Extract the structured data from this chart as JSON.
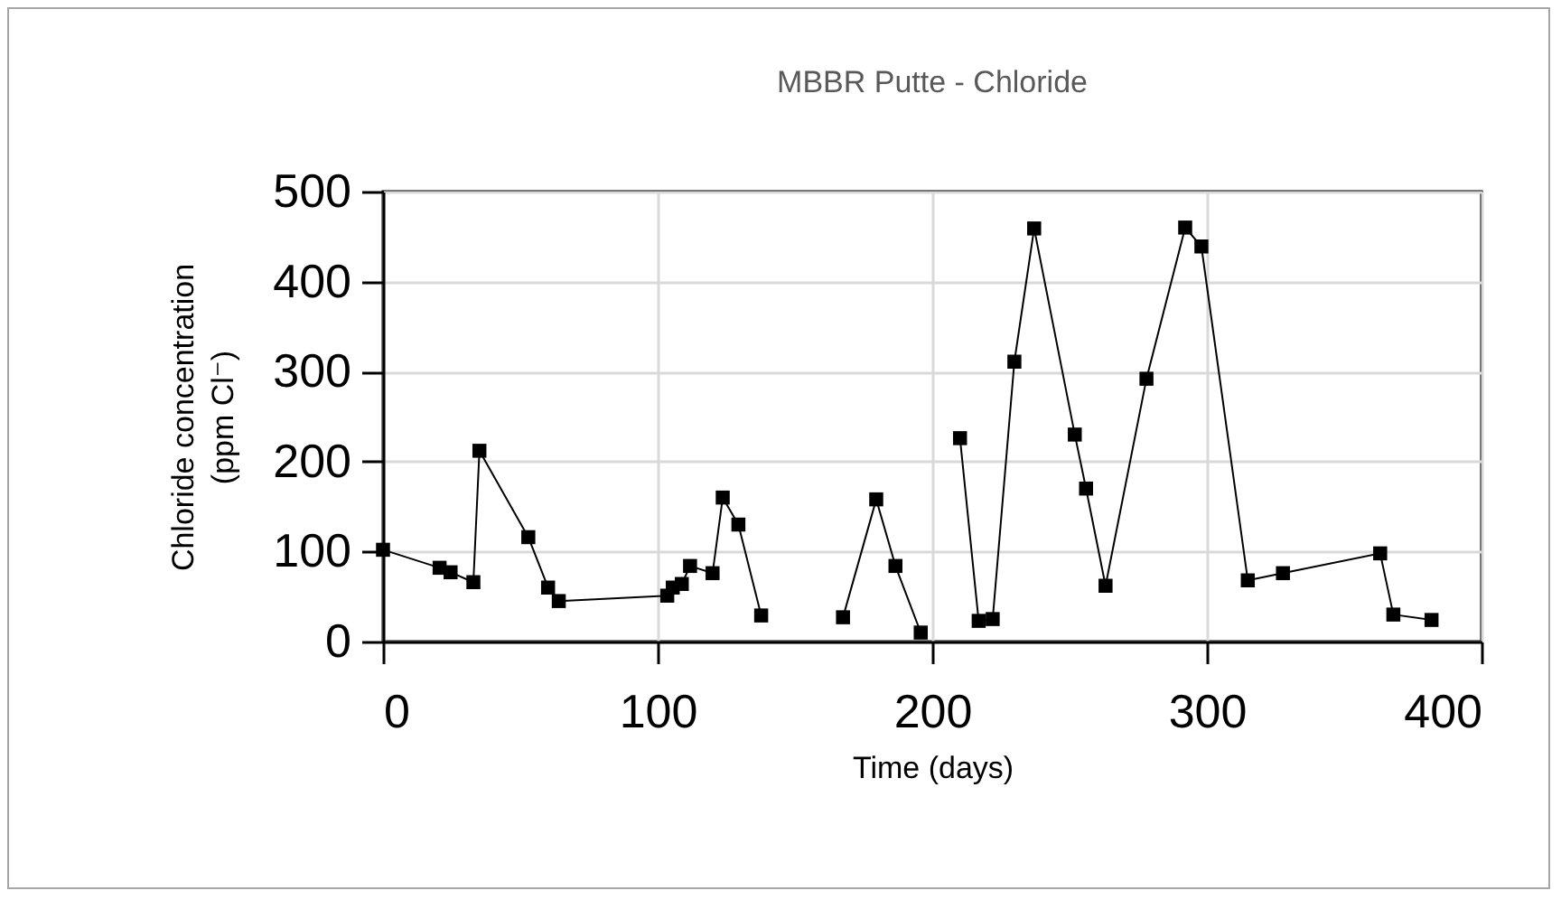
{
  "chart_data": {
    "type": "line",
    "title": "MBBR Putte - Chloride",
    "xlabel": "Time (days)",
    "ylabel": "Chloride concentration\n(ppm Cl⁻)",
    "xlim": [
      0,
      400
    ],
    "xticks": [
      0,
      100,
      200,
      300,
      400
    ],
    "ylim": [
      0,
      500
    ],
    "yticks": [
      0,
      100,
      200,
      300,
      400,
      500
    ],
    "grid": true,
    "marker": "square",
    "line_style": "solid",
    "series": [
      {
        "color": "#000000",
        "x": [
          0,
          20.6,
          24.6,
          32.9,
          35.1,
          52.9,
          60.1,
          64,
          103.5,
          105.5,
          108.8,
          111.8,
          120,
          123.7,
          129.4,
          137.7
        ],
        "values": [
          102,
          82,
          77,
          66,
          212,
          116,
          60,
          45,
          51,
          60,
          64,
          84,
          76,
          160,
          130,
          29
        ]
      },
      {
        "color": "#000000",
        "x": [
          167.5,
          179.6,
          186.6,
          195.8
        ],
        "values": [
          27,
          158,
          84,
          10
        ]
      },
      {
        "color": "#000000",
        "x": [
          210.1,
          216.9,
          222,
          229.9,
          237.1,
          251.9,
          256,
          263.1,
          278,
          292.1,
          298,
          314.9,
          327.7,
          363.1,
          367.9,
          381.8
        ],
        "values": [
          226,
          23,
          25,
          311,
          459,
          230,
          170,
          62,
          292,
          460,
          439,
          68,
          76,
          98,
          30,
          24
        ]
      }
    ]
  }
}
